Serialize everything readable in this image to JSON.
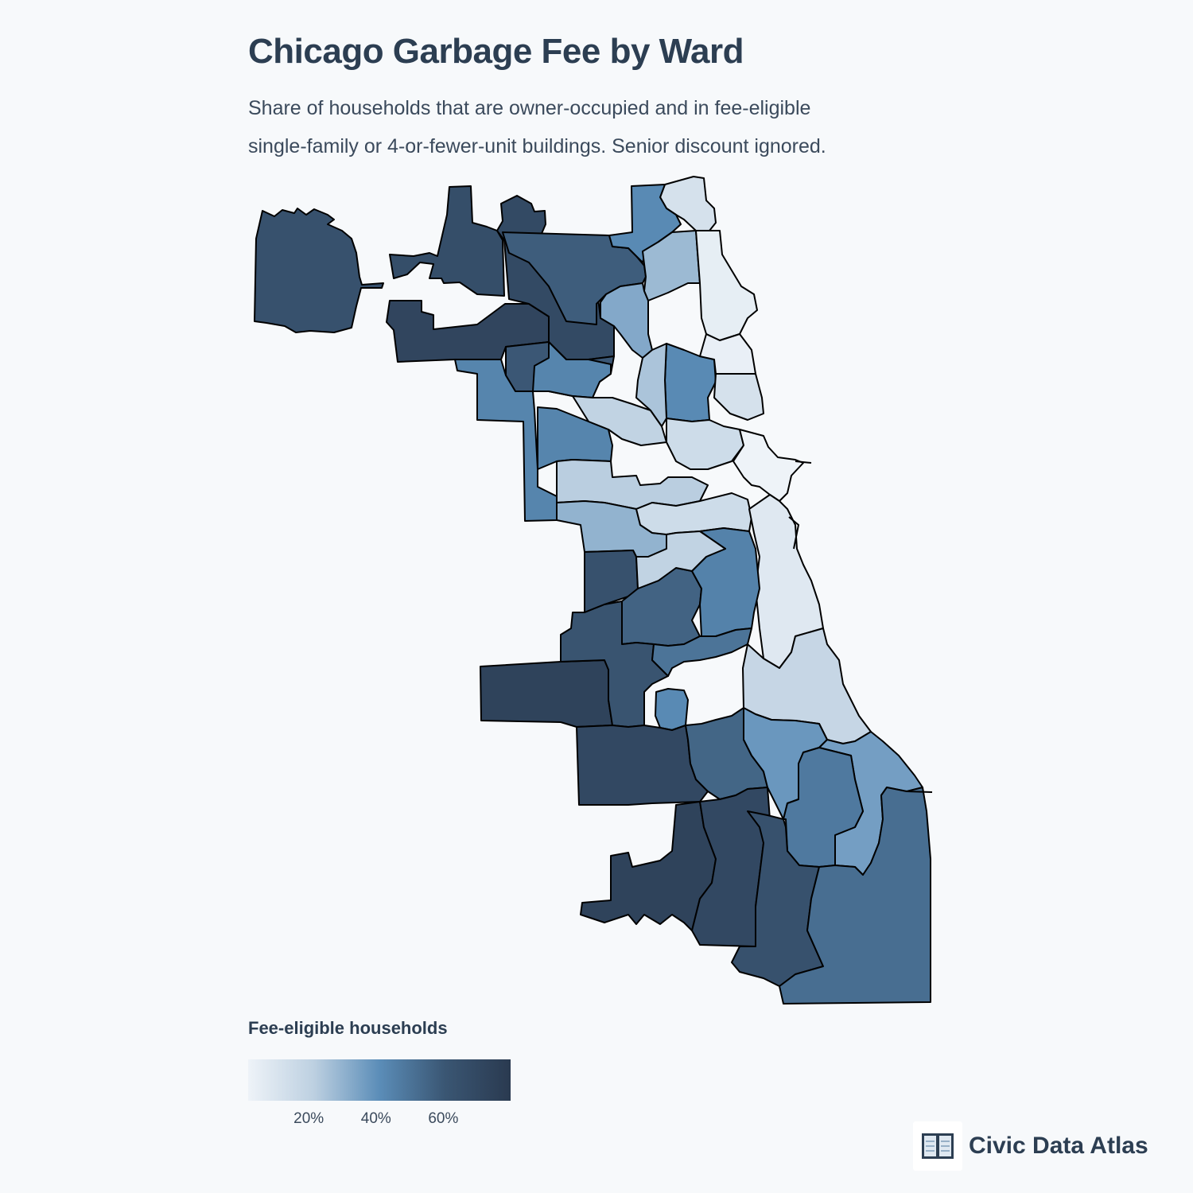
{
  "header": {
    "title": "Chicago Garbage Fee by Ward",
    "subtitle_lines": [
      "Share of households that are owner-occupied and in fee-eligible",
      "single-family or 4-or-fewer-unit buildings. Senior discount ignored."
    ]
  },
  "legend": {
    "title": "Fee-eligible households",
    "ticks": [
      "20%",
      "40%",
      "60%"
    ],
    "tick_values": [
      0.2,
      0.4,
      0.6
    ],
    "domain": [
      0.02,
      0.8
    ],
    "color_stops": [
      "#eef3f8",
      "#bdd0e1",
      "#5b8db8",
      "#3a5673",
      "#2a3a50"
    ]
  },
  "brand": {
    "name": "Civic Data Atlas",
    "icon": "open-book-icon"
  },
  "map": {
    "region": "Chicago",
    "unit": "ward",
    "wards": [
      {
        "id": "far-northwest-detached",
        "value": 0.64
      },
      {
        "id": "northwest-upper",
        "value": 0.66
      },
      {
        "id": "northwest-strip",
        "value": 0.72
      },
      {
        "id": "northwest-panhandle",
        "value": 0.69
      },
      {
        "id": "north-central",
        "value": 0.58
      },
      {
        "id": "north-wide",
        "value": 0.6
      },
      {
        "id": "lakefront-far-north",
        "value": 0.12
      },
      {
        "id": "north-blue",
        "value": 0.42
      },
      {
        "id": "north-mid-light",
        "value": 0.28
      },
      {
        "id": "lakefront-north",
        "value": 0.05
      },
      {
        "id": "northwest-mid",
        "value": 0.44
      },
      {
        "id": "north-inner-mid",
        "value": 0.33
      },
      {
        "id": "north-inner-blue",
        "value": 0.42
      },
      {
        "id": "lakefront-lincoln-park",
        "value": 0.04
      },
      {
        "id": "lakefront-lakeview",
        "value": 0.12
      },
      {
        "id": "west-blue",
        "value": 0.44
      },
      {
        "id": "west-mid",
        "value": 0.44
      },
      {
        "id": "west-central-light",
        "value": 0.2
      },
      {
        "id": "west-center",
        "value": 0.25
      },
      {
        "id": "near-north-light",
        "value": 0.15
      },
      {
        "id": "west-light",
        "value": 0.22
      },
      {
        "id": "downtown",
        "value": 0.02
      },
      {
        "id": "southwest-light",
        "value": 0.3
      },
      {
        "id": "south-near-loop",
        "value": 0.15
      },
      {
        "id": "lakefront-south",
        "value": 0.08
      },
      {
        "id": "southwest-dark",
        "value": 0.64
      },
      {
        "id": "southwest-mid",
        "value": 0.56
      },
      {
        "id": "south-blue",
        "value": 0.45
      },
      {
        "id": "south-central-light",
        "value": 0.2
      },
      {
        "id": "southwest-corner-dark",
        "value": 0.74
      },
      {
        "id": "southwest-mid-dark",
        "value": 0.62
      },
      {
        "id": "south-mid",
        "value": 0.5
      },
      {
        "id": "south-small-blue",
        "value": 0.42
      },
      {
        "id": "south-lakefront-light",
        "value": 0.18
      },
      {
        "id": "south-dark",
        "value": 0.7
      },
      {
        "id": "south-mid-2",
        "value": 0.55
      },
      {
        "id": "south-blue-2",
        "value": 0.38
      },
      {
        "id": "south-lakefront-blue",
        "value": 0.36
      },
      {
        "id": "far-south-mid",
        "value": 0.48
      },
      {
        "id": "far-southwest-dark",
        "value": 0.74
      },
      {
        "id": "far-south-dark",
        "value": 0.7
      },
      {
        "id": "far-south-dark-2",
        "value": 0.64
      },
      {
        "id": "far-south-mid-2",
        "value": 0.52
      }
    ]
  }
}
